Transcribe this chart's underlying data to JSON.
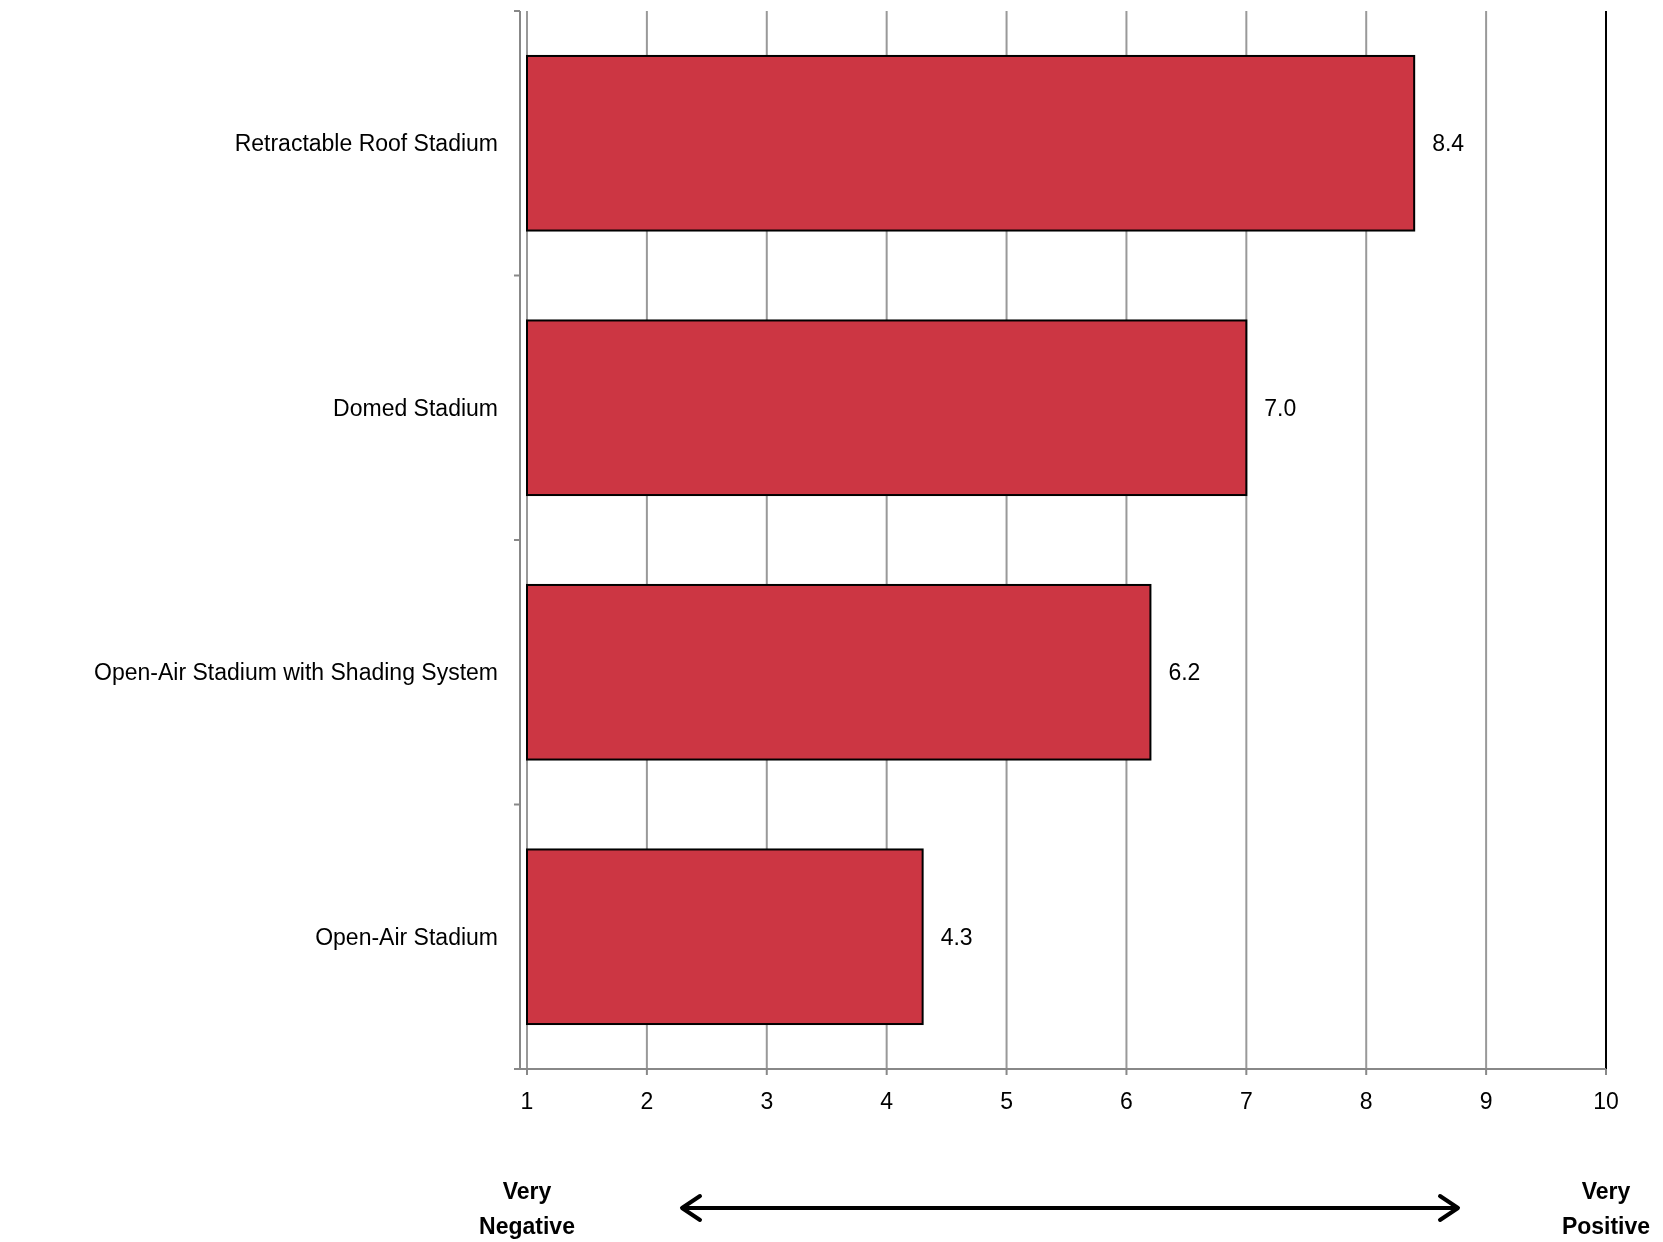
{
  "chart_data": {
    "type": "bar",
    "orientation": "horizontal",
    "categories": [
      "Retractable Roof Stadium",
      "Domed Stadium",
      "Open-Air Stadium with Shading System",
      "Open-Air Stadium"
    ],
    "values": [
      8.4,
      7.0,
      6.2,
      4.3
    ],
    "color": "#cc3643",
    "xlim": [
      1,
      10
    ],
    "xticks": [
      1,
      2,
      3,
      4,
      5,
      6,
      7,
      8,
      9,
      10
    ],
    "grid": "x",
    "value_labels": [
      "8.4",
      "7.0",
      "6.2",
      "4.3"
    ],
    "annotations": [
      "Very Negative",
      "Very Positive"
    ]
  }
}
